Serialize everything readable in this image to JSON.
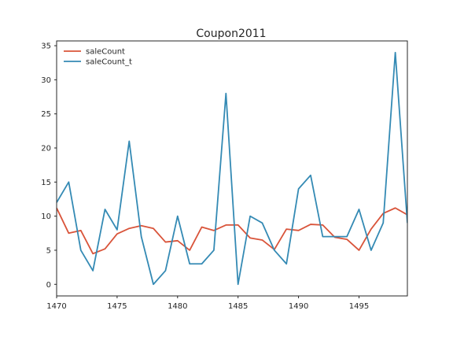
{
  "chart_data": {
    "type": "line",
    "title": "Coupon2011",
    "xlabel": "",
    "ylabel": "",
    "xlim": [
      1470,
      1499
    ],
    "ylim": [
      -1.7,
      35.7
    ],
    "xticks": [
      1470,
      1475,
      1480,
      1485,
      1490,
      1495
    ],
    "yticks": [
      0,
      5,
      10,
      15,
      20,
      25,
      30,
      35
    ],
    "grid": false,
    "legend_position": "top-left",
    "x": [
      1470,
      1471,
      1472,
      1473,
      1474,
      1475,
      1476,
      1477,
      1478,
      1479,
      1480,
      1481,
      1482,
      1483,
      1484,
      1485,
      1486,
      1487,
      1488,
      1489,
      1490,
      1491,
      1492,
      1493,
      1494,
      1495,
      1496,
      1497,
      1498,
      1499
    ],
    "series": [
      {
        "name": "saleCount",
        "color": "#d9543a",
        "values": [
          11.2,
          7.5,
          7.9,
          4.5,
          5.2,
          7.4,
          8.2,
          8.6,
          8.2,
          6.2,
          6.4,
          5.0,
          8.4,
          7.9,
          8.7,
          8.7,
          6.8,
          6.5,
          5.1,
          8.1,
          7.9,
          8.8,
          8.7,
          6.9,
          6.6,
          5.0,
          8.1,
          10.4,
          11.2,
          10.2
        ]
      },
      {
        "name": "saleCount_t",
        "color": "#348ab4",
        "values": [
          12,
          15,
          5,
          2,
          11,
          8,
          21,
          7,
          0,
          2,
          10,
          3,
          3,
          5,
          28,
          0,
          10,
          9,
          5,
          3,
          14,
          16,
          7,
          7,
          7,
          11,
          5,
          9,
          34,
          9
        ]
      }
    ]
  }
}
